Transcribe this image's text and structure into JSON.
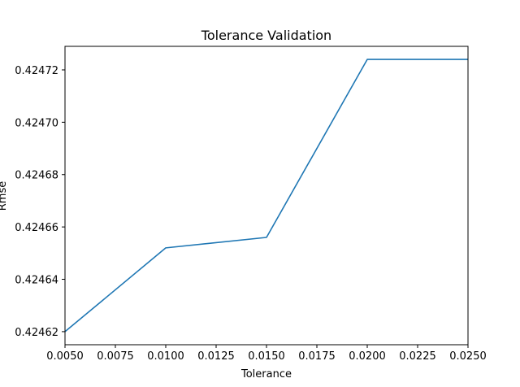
{
  "chart_data": {
    "type": "line",
    "title": "Tolerance Validation",
    "xlabel": "Tolerance",
    "ylabel": "Rmse",
    "xlim": [
      0.005,
      0.025
    ],
    "ylim": [
      0.424615,
      0.424729
    ],
    "x_ticks": [
      "0.0050",
      "0.0075",
      "0.0100",
      "0.0125",
      "0.0150",
      "0.0175",
      "0.0200",
      "0.0225",
      "0.0250"
    ],
    "y_ticks": [
      "0.42462",
      "0.42464",
      "0.42466",
      "0.42468",
      "0.42470",
      "0.42472"
    ],
    "grid": false,
    "series": [
      {
        "color": "#1f77b4",
        "x": [
          0.005,
          0.01,
          0.015,
          0.02,
          0.025
        ],
        "y": [
          0.42462,
          0.424652,
          0.424656,
          0.424724,
          0.424724
        ]
      }
    ]
  }
}
